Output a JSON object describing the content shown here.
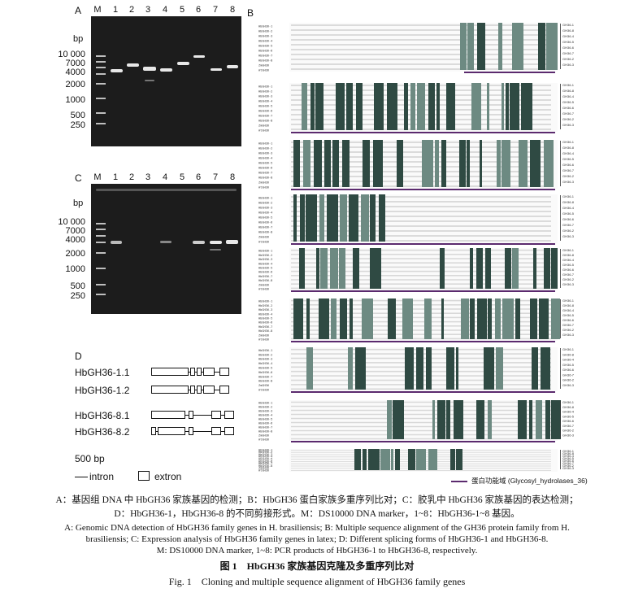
{
  "panelA": {
    "letter": "A",
    "bp_label": "bp",
    "lanes": [
      "M",
      "1",
      "2",
      "3",
      "4",
      "5",
      "6",
      "7",
      "8"
    ],
    "marker_labels": [
      "10 000",
      "7000",
      "4000",
      "2000",
      "1000",
      "500",
      "250"
    ]
  },
  "panelB": {
    "letter": "B",
    "legend": "蛋白功能域 (Glycosyl_hydrolases_36)",
    "seq_names": [
      "HbGH36-1",
      "HbGH36-2",
      "HbGH36-3",
      "HbGH36-4",
      "HbGH36-5",
      "HbGH36-6",
      "HbGH36-7",
      "HbGH36-8",
      "ZmGH36",
      "AtGH36"
    ],
    "consensus": "Consensus",
    "group_labels": [
      "GH36-1",
      "GH36-8",
      "GH36-4",
      "GH36-5",
      "GH36-6",
      "GH36-7",
      "GH36-2",
      "GH36-3",
      "PRK00511"
    ]
  },
  "panelC": {
    "letter": "C",
    "bp_label": "bp",
    "lanes": [
      "M",
      "1",
      "2",
      "3",
      "4",
      "5",
      "6",
      "7",
      "8"
    ],
    "marker_labels": [
      "10 000",
      "7000",
      "4000",
      "2000",
      "1000",
      "500",
      "250"
    ]
  },
  "panelD": {
    "letter": "D",
    "genes": [
      "HbGH36-1.1",
      "HbGH36-1.2",
      "HbGH36-8.1",
      "HbGH36-8.2"
    ],
    "scale": "500 bp",
    "intron_label": "intron",
    "extron_label": "extron"
  },
  "caption": {
    "cn_legend_1": "A：基因组 DNA 中 HbGH36 家族基因的检测；B：HbGH36 蛋白家族多重序列比对；C：胶乳中 HbGH36 家族基因的表达检测；",
    "cn_legend_2": "D：HbGH36-1，HbGH36-8 的不同剪接形式。M：DS10000 DNA marker，1~8：HbGH36-1~8 基因。",
    "en_legend_1": "A: Genomic DNA detection of HbGH36 family genes in H. brasiliensis; B: Multiple sequence alignment of the GH36 protein family from H.",
    "en_legend_2": "brasiliensis; C: Expression analysis of HbGH36 family genes in latex; D: Different splicing forms of HbGH36-1 and HbGH36-8.",
    "en_legend_3": "M: DS10000 DNA marker, 1~8: PCR products of HbGH36-1 to HbGH36-8, respectively.",
    "cn_title": "图 1　HbGH36 家族基因克隆及多重序列比对",
    "en_title": "Fig. 1　Cloning and multiple sequence alignment of HbGH36 family genes"
  }
}
